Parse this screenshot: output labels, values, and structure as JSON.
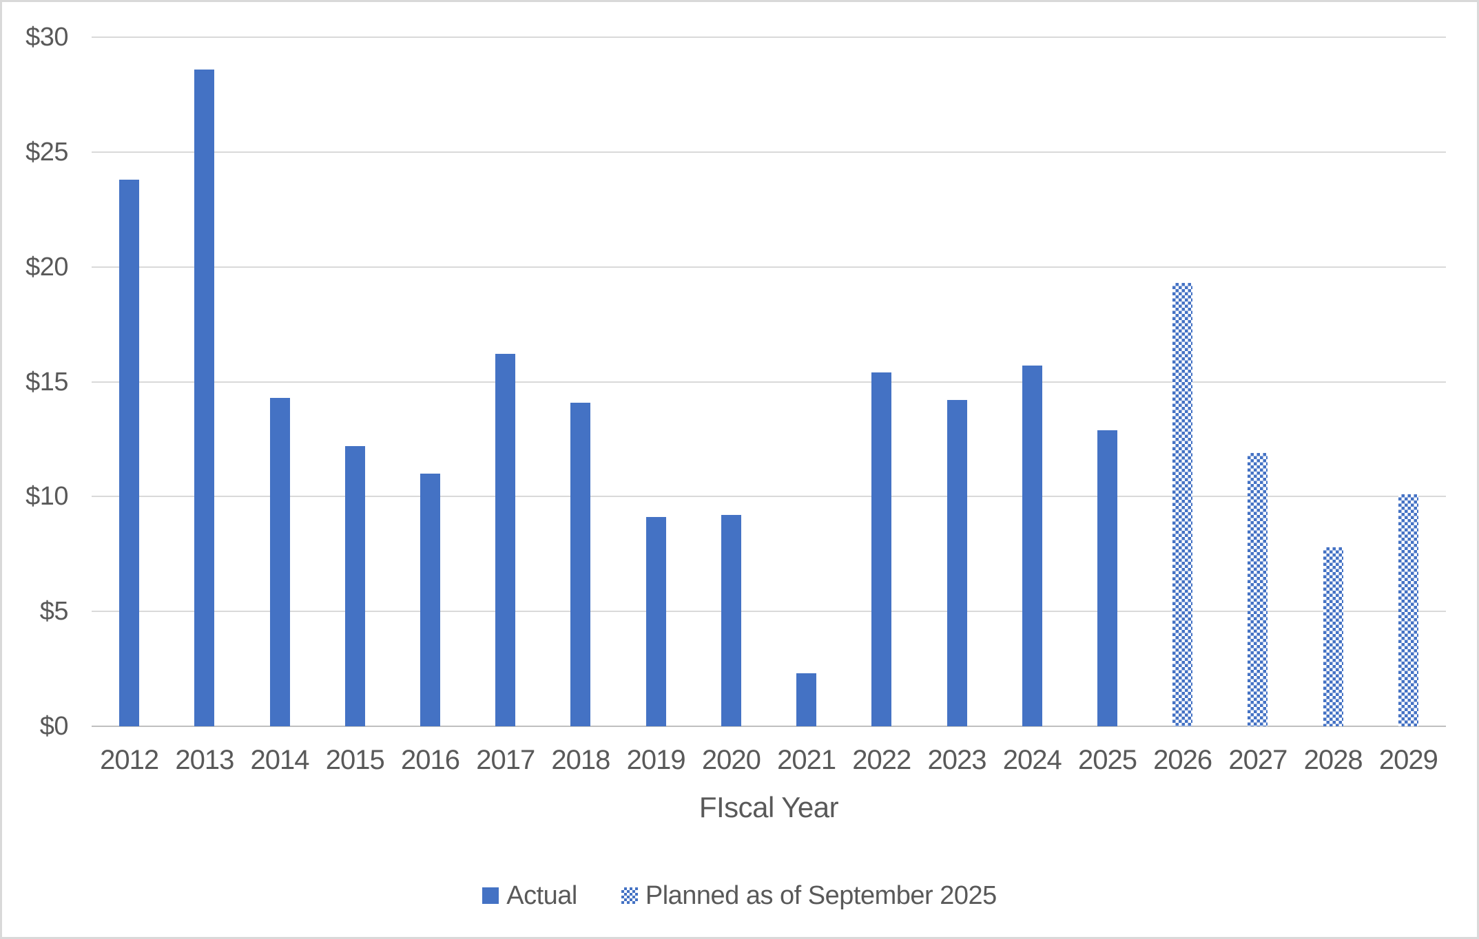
{
  "colors": {
    "bar_blue": "#4472C4",
    "gridline": "#D9D9D9",
    "axis_line": "#BFBFBF",
    "text": "#595959",
    "background": "#FFFFFF",
    "chart_border": "#D9D9D9"
  },
  "chart_data": {
    "type": "bar",
    "title": "",
    "xlabel": "FIscal Year",
    "ylabel": "",
    "ylim": [
      0,
      30
    ],
    "ytick_values": [
      0,
      5,
      10,
      15,
      20,
      25,
      30
    ],
    "ytick_labels": [
      "$0",
      "$5",
      "$10",
      "$15",
      "$20",
      "$25",
      "$30"
    ],
    "grid": true,
    "legend_position": "bottom",
    "categories": [
      "2012",
      "2013",
      "2014",
      "2015",
      "2016",
      "2017",
      "2018",
      "2019",
      "2020",
      "2021",
      "2022",
      "2023",
      "2024",
      "2025",
      "2026",
      "2027",
      "2028",
      "2029"
    ],
    "series": [
      {
        "name": "Actual",
        "style": "solid",
        "values": [
          23.8,
          28.6,
          14.3,
          12.2,
          11.0,
          16.2,
          14.1,
          9.1,
          9.2,
          2.3,
          15.4,
          14.2,
          15.7,
          12.9,
          null,
          null,
          null,
          null
        ]
      },
      {
        "name": "Planned as of September 2025",
        "style": "pattern",
        "values": [
          null,
          null,
          null,
          null,
          null,
          null,
          null,
          null,
          null,
          null,
          null,
          null,
          null,
          null,
          19.3,
          11.9,
          7.8,
          10.1
        ]
      }
    ]
  }
}
